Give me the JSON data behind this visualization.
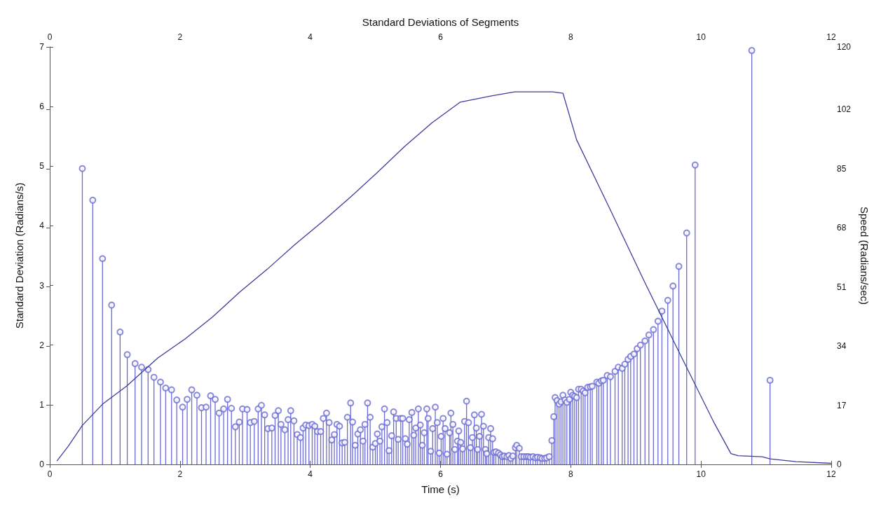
{
  "chart_data": {
    "type": "lollipop",
    "xlabel": "Time (s)",
    "x2label": "Standard Deviations of Segments",
    "ylabel": "Standard Deviation (Radians/s)",
    "y2label": "Speed (Radians/sec)",
    "xlim": [
      0,
      12
    ],
    "xticks": [
      0,
      2,
      4,
      6,
      8,
      10,
      12
    ],
    "x2lim": [
      0,
      12
    ],
    "x2ticks": [
      0,
      2,
      4,
      6,
      8,
      10,
      12
    ],
    "ylim": [
      0,
      7
    ],
    "yticks": [
      0,
      1,
      2,
      3,
      4,
      5,
      6,
      7
    ],
    "y2lim": [
      0,
      120
    ],
    "y2ticks": [
      0,
      17,
      34,
      51,
      68,
      85,
      102,
      120
    ],
    "grid": false,
    "series": [
      {
        "marker": "circle",
        "color": "#6b6bd6",
        "x": [
          0.5,
          0.66,
          0.81,
          0.95,
          1.08,
          1.19,
          1.31,
          1.41,
          1.51,
          1.6,
          1.7,
          1.78,
          1.87,
          1.95,
          2.04,
          2.11,
          2.18,
          2.26,
          2.33,
          2.4,
          2.47,
          2.54,
          2.6,
          2.67,
          2.73,
          2.79,
          2.85,
          2.91,
          2.96,
          3.03,
          3.08,
          3.14,
          3.2,
          3.25,
          3.3,
          3.35,
          3.41,
          3.46,
          3.51,
          3.55,
          3.61,
          3.66,
          3.7,
          3.75,
          3.8,
          3.85,
          3.89,
          3.93,
          3.98,
          4.03,
          4.07,
          4.11,
          4.16,
          4.2,
          4.25,
          4.29,
          4.33,
          4.37,
          4.41,
          4.45,
          4.49,
          4.53,
          4.57,
          4.62,
          4.65,
          4.69,
          4.73,
          4.77,
          4.81,
          4.84,
          4.88,
          4.92,
          4.96,
          5.0,
          5.03,
          5.07,
          5.1,
          5.14,
          5.18,
          5.21,
          5.25,
          5.28,
          5.32,
          5.35,
          5.39,
          5.42,
          5.46,
          5.49,
          5.52,
          5.56,
          5.59,
          5.62,
          5.66,
          5.69,
          5.72,
          5.75,
          5.79,
          5.81,
          5.85,
          5.88,
          5.92,
          5.95,
          5.98,
          6.01,
          6.04,
          6.07,
          6.1,
          6.14,
          6.16,
          6.19,
          6.22,
          6.26,
          6.28,
          6.31,
          6.34,
          6.37,
          6.4,
          6.43,
          6.46,
          6.49,
          6.52,
          6.55,
          6.57,
          6.6,
          6.63,
          6.66,
          6.69,
          6.71,
          6.74,
          6.77,
          6.8,
          6.82,
          6.85,
          6.89,
          6.92,
          6.95,
          6.98,
          7.02,
          7.05,
          7.08,
          7.11,
          7.15,
          7.17,
          7.21,
          7.24,
          7.28,
          7.32,
          7.35,
          7.38,
          7.42,
          7.46,
          7.49,
          7.53,
          7.56,
          7.6,
          7.63,
          7.67,
          7.71,
          7.74,
          7.76,
          7.79,
          7.82,
          7.85,
          7.88,
          7.91,
          7.94,
          7.98,
          8.0,
          8.03,
          8.06,
          8.09,
          8.12,
          8.16,
          8.19,
          8.22,
          8.26,
          8.3,
          8.33,
          8.4,
          8.43,
          8.47,
          8.5,
          8.56,
          8.61,
          8.68,
          8.73,
          8.79,
          8.83,
          8.88,
          8.92,
          8.97,
          9.02,
          9.07,
          9.14,
          9.2,
          9.27,
          9.34,
          9.4,
          9.49,
          9.57,
          9.66,
          9.78,
          9.91,
          10.78,
          11.06
        ],
        "values": [
          4.96,
          4.43,
          3.45,
          2.67,
          2.22,
          1.84,
          1.69,
          1.63,
          1.59,
          1.46,
          1.38,
          1.28,
          1.25,
          1.08,
          0.96,
          1.09,
          1.25,
          1.16,
          0.95,
          0.96,
          1.15,
          1.09,
          0.86,
          0.93,
          1.09,
          0.94,
          0.63,
          0.71,
          0.93,
          0.92,
          0.7,
          0.72,
          0.93,
          0.99,
          0.83,
          0.6,
          0.61,
          0.82,
          0.9,
          0.67,
          0.58,
          0.75,
          0.9,
          0.73,
          0.5,
          0.45,
          0.61,
          0.66,
          0.65,
          0.67,
          0.64,
          0.55,
          0.55,
          0.77,
          0.86,
          0.7,
          0.41,
          0.5,
          0.67,
          0.64,
          0.36,
          0.37,
          0.79,
          1.03,
          0.71,
          0.32,
          0.51,
          0.58,
          0.39,
          0.67,
          1.03,
          0.79,
          0.29,
          0.35,
          0.51,
          0.39,
          0.63,
          0.93,
          0.7,
          0.23,
          0.48,
          0.88,
          0.77,
          0.42,
          0.77,
          0.77,
          0.43,
          0.34,
          0.75,
          0.87,
          0.49,
          0.61,
          0.93,
          0.66,
          0.32,
          0.53,
          0.93,
          0.77,
          0.22,
          0.6,
          0.96,
          0.7,
          0.19,
          0.47,
          0.77,
          0.6,
          0.17,
          0.53,
          0.86,
          0.67,
          0.25,
          0.39,
          0.56,
          0.37,
          0.26,
          0.72,
          1.06,
          0.7,
          0.28,
          0.45,
          0.83,
          0.61,
          0.25,
          0.47,
          0.84,
          0.64,
          0.25,
          0.18,
          0.45,
          0.6,
          0.43,
          0.2,
          0.21,
          0.19,
          0.16,
          0.13,
          0.14,
          0.13,
          0.15,
          0.1,
          0.14,
          0.28,
          0.32,
          0.27,
          0.13,
          0.13,
          0.13,
          0.13,
          0.12,
          0.13,
          0.11,
          0.12,
          0.11,
          0.1,
          0.1,
          0.11,
          0.13,
          0.4,
          0.8,
          1.12,
          1.07,
          1.01,
          1.05,
          1.16,
          1.08,
          1.04,
          1.09,
          1.21,
          1.16,
          1.14,
          1.12,
          1.26,
          1.26,
          1.23,
          1.2,
          1.29,
          1.3,
          1.31,
          1.38,
          1.36,
          1.4,
          1.41,
          1.49,
          1.47,
          1.56,
          1.63,
          1.61,
          1.68,
          1.76,
          1.81,
          1.85,
          1.94,
          2.0,
          2.07,
          2.17,
          2.26,
          2.4,
          2.57,
          2.75,
          2.99,
          3.32,
          3.88,
          5.02,
          6.94,
          1.41
        ]
      },
      {
        "type": "line",
        "axis": "y2",
        "color": "#3d3d9c",
        "x": [
          0.11,
          0.28,
          0.5,
          0.81,
          1.18,
          1.66,
          2.08,
          2.5,
          2.92,
          3.34,
          3.76,
          4.19,
          4.61,
          5.03,
          5.45,
          5.87,
          6.3,
          6.77,
          7.14,
          7.72,
          7.88,
          8.09,
          8.62,
          9.14,
          9.67,
          10.2,
          10.46,
          10.57,
          10.94,
          11.06,
          11.46,
          12.0
        ],
        "values": [
          1.0,
          5.1,
          11.2,
          17.3,
          22.5,
          30.6,
          36.1,
          42.4,
          49.6,
          56.1,
          63.1,
          69.8,
          76.7,
          83.9,
          91.4,
          98.2,
          104.1,
          105.9,
          107.1,
          107.1,
          106.7,
          93.3,
          72.7,
          52.2,
          32.0,
          12.0,
          3.1,
          2.5,
          2.2,
          1.6,
          0.8,
          0.3
        ]
      }
    ]
  }
}
